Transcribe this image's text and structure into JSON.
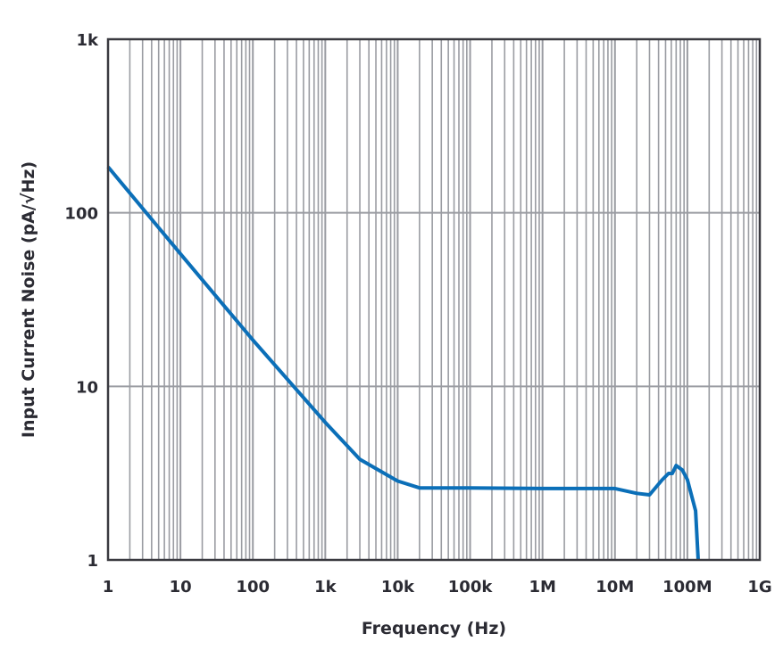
{
  "chart_data": {
    "type": "line",
    "title": "",
    "xlabel": "Frequency (Hz)",
    "ylabel": "Input Current Noise (pA/√Hz)",
    "x_scale": "log",
    "y_scale": "log",
    "xlim": [
      1,
      1000000000
    ],
    "ylim": [
      1,
      1000
    ],
    "x_ticks": [
      {
        "value": 1,
        "label": "1"
      },
      {
        "value": 10,
        "label": "10"
      },
      {
        "value": 100,
        "label": "100"
      },
      {
        "value": 1000,
        "label": "1k"
      },
      {
        "value": 10000,
        "label": "10k"
      },
      {
        "value": 100000,
        "label": "100k"
      },
      {
        "value": 1000000,
        "label": "1M"
      },
      {
        "value": 10000000,
        "label": "10M"
      },
      {
        "value": 100000000,
        "label": "100M"
      },
      {
        "value": 1000000000,
        "label": "1G"
      }
    ],
    "y_ticks": [
      {
        "value": 1,
        "label": "1"
      },
      {
        "value": 10,
        "label": "10"
      },
      {
        "value": 100,
        "label": "100"
      },
      {
        "value": 1000,
        "label": "1k"
      }
    ],
    "grid": true,
    "series_color": "#0b6fb8",
    "series": [
      {
        "x": [
          1,
          10,
          100,
          1000,
          3000,
          10000,
          20000,
          100000,
          1000000,
          10000000,
          20000000,
          30000000,
          45000000,
          55000000,
          62000000,
          70000000,
          85000000,
          100000000,
          130000000,
          141000000
        ],
        "y": [
          184,
          58,
          18.5,
          6.2,
          3.8,
          2.85,
          2.6,
          2.6,
          2.58,
          2.58,
          2.42,
          2.37,
          2.9,
          3.15,
          3.15,
          3.5,
          3.3,
          2.9,
          1.92,
          1
        ]
      }
    ]
  }
}
